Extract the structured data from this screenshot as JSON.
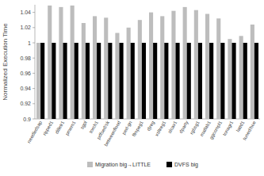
{
  "chart_data": {
    "type": "bar",
    "y_label": "Normalized Execution Time",
    "categories": [
      "needledsap",
      "ripped1",
      "dilletr1",
      "pmem1",
      "sgpl",
      "torch1",
      "pdfsed/sk",
      "betweenflood",
      "perl-gn",
      "ffmpeg1",
      "djreg",
      "xsltreg1",
      "slcav1",
      "dparty",
      "rgbsg1",
      "matlab1",
      "ggccmpl1",
      "tonagr1",
      "lattd1",
      "tuned/hue"
    ],
    "series": [
      {
        "name": "Migration big→LITTLE",
        "color": "#bdbdbd",
        "values": [
          1.0,
          1.049,
          1.047,
          1.049,
          1.026,
          1.035,
          1.033,
          1.013,
          1.02,
          1.03,
          1.04,
          1.035,
          1.042,
          1.047,
          1.043,
          1.038,
          1.032,
          1.005,
          1.009,
          1.024
        ]
      },
      {
        "name": "DVFS big",
        "color": "#000000",
        "values": [
          1.0,
          1.0,
          1.0,
          1.0,
          1.0,
          1.0,
          1.0,
          1.0,
          1.0,
          1.0,
          1.0,
          1.0,
          1.0,
          1.0,
          1.0,
          1.0,
          1.0,
          1.0,
          1.0,
          1.0
        ]
      }
    ],
    "ylim": [
      0.9,
      1.05
    ],
    "yticks": [
      0.9,
      0.92,
      0.94,
      0.96,
      0.98,
      1,
      1.02,
      1.04
    ],
    "grid": false,
    "legend": "bottom"
  }
}
